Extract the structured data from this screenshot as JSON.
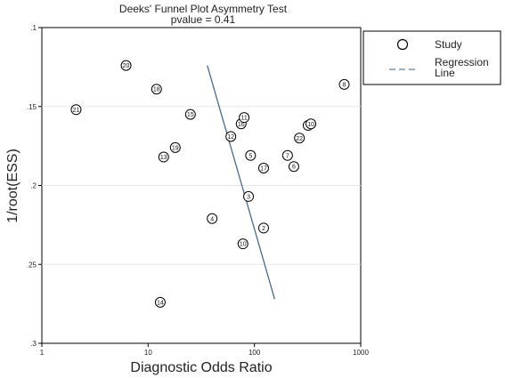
{
  "chart_data": {
    "type": "scatter",
    "title": "Deeks' Funnel Plot Asymmetry Test",
    "subtitle": "pvalue =    0.41",
    "xlabel": "Diagnostic Odds Ratio",
    "ylabel": "1/root(ESS)",
    "x_scale": "log",
    "xlim": [
      1,
      1000
    ],
    "ylim": [
      0.3,
      0.1
    ],
    "x_ticks": [
      1,
      10,
      100,
      1000
    ],
    "x_tick_labels": [
      "1",
      "10",
      "100",
      "1000"
    ],
    "y_ticks": [
      0.1,
      0.15,
      0.2,
      0.25,
      0.3
    ],
    "y_tick_labels": [
      ".1",
      ".15",
      ".2",
      ".25",
      ".3"
    ],
    "grid": "horizontal",
    "legend": {
      "position": "right",
      "entries": [
        {
          "label": "Study",
          "marker": "circle"
        },
        {
          "label": "Regression\nLine",
          "marker": "dashed-line"
        }
      ]
    },
    "series": [
      {
        "name": "Study",
        "points": [
          {
            "label": "20",
            "x": 6.2,
            "y": 0.124
          },
          {
            "label": "18",
            "x": 12.0,
            "y": 0.139
          },
          {
            "label": "21",
            "x": 2.1,
            "y": 0.152
          },
          {
            "label": "15",
            "x": 25,
            "y": 0.155
          },
          {
            "label": "16",
            "x": 75,
            "y": 0.161
          },
          {
            "label": "11",
            "x": 80,
            "y": 0.157
          },
          {
            "label": "12",
            "x": 60,
            "y": 0.169
          },
          {
            "label": "19",
            "x": 18,
            "y": 0.176
          },
          {
            "label": "13",
            "x": 14,
            "y": 0.182
          },
          {
            "label": "5",
            "x": 92,
            "y": 0.181
          },
          {
            "label": "17",
            "x": 122,
            "y": 0.189
          },
          {
            "label": "7",
            "x": 205,
            "y": 0.181
          },
          {
            "label": "6",
            "x": 235,
            "y": 0.188
          },
          {
            "label": "22",
            "x": 265,
            "y": 0.17
          },
          {
            "label": "1",
            "x": 320,
            "y": 0.162
          },
          {
            "label": "10",
            "x": 340,
            "y": 0.161
          },
          {
            "label": "8",
            "x": 700,
            "y": 0.136
          },
          {
            "label": "3",
            "x": 88,
            "y": 0.207
          },
          {
            "label": "4",
            "x": 40,
            "y": 0.221
          },
          {
            "label": "2",
            "x": 122,
            "y": 0.227
          },
          {
            "label": "10",
            "x": 78,
            "y": 0.237
          },
          {
            "label": "14",
            "x": 13,
            "y": 0.274
          }
        ]
      },
      {
        "name": "Regression Line",
        "type": "line",
        "points": [
          {
            "x": 36,
            "y": 0.124
          },
          {
            "x": 155,
            "y": 0.272
          }
        ]
      }
    ]
  }
}
